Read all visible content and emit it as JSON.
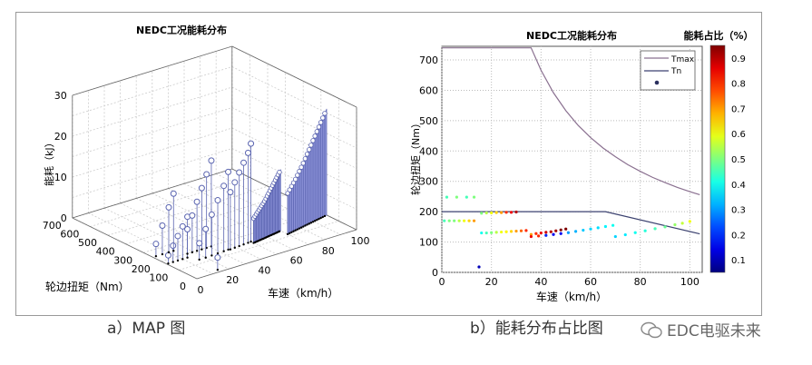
{
  "captions": {
    "a": "a）MAP 图",
    "b": "b）能耗分布占比图"
  },
  "watermark": "EDC电驱未来",
  "chart_data": [
    {
      "type": "scatter3d-stem",
      "title": "NEDC工况能耗分布",
      "xlabel": "车速（km/h）",
      "ylabel": "轮边扭矩（Nm）",
      "zlabel": "能耗（kJ）",
      "xlim": [
        0,
        100
      ],
      "ylim": [
        0,
        700
      ],
      "zlim": [
        0,
        30
      ],
      "xticks": [
        "0",
        "20",
        "40",
        "60",
        "80",
        "100"
      ],
      "yticks": [
        "0",
        "100",
        "200",
        "300",
        "400",
        "500",
        "600",
        "700"
      ],
      "zticks": [
        "0",
        "10",
        "20",
        "30"
      ],
      "stem_color": "#5a64b0",
      "fill_color": "#8c92d8",
      "grid": true,
      "points": [
        [
          1,
          170,
          2
        ],
        [
          4,
          170,
          4
        ],
        [
          7,
          170,
          6
        ],
        [
          10,
          170,
          8
        ],
        [
          13,
          170,
          10
        ],
        [
          2,
          248,
          3
        ],
        [
          6,
          248,
          7
        ],
        [
          10,
          248,
          11
        ],
        [
          13,
          248,
          14
        ],
        [
          16,
          197,
          6
        ],
        [
          19,
          197,
          9
        ],
        [
          22,
          197,
          12
        ],
        [
          25,
          197,
          15
        ],
        [
          28,
          197,
          18
        ],
        [
          31,
          197,
          21
        ],
        [
          16,
          130,
          4
        ],
        [
          20,
          130,
          7
        ],
        [
          24,
          132,
          10
        ],
        [
          28,
          134,
          13
        ],
        [
          32,
          136,
          16
        ],
        [
          35,
          138,
          19
        ],
        [
          36,
          135,
          14
        ],
        [
          39,
          137,
          16
        ],
        [
          42,
          139,
          18
        ],
        [
          45,
          141,
          20
        ],
        [
          48,
          143,
          22
        ],
        [
          50,
          145,
          24
        ],
        [
          15,
          18,
          3
        ]
      ],
      "filled": [
        {
          "x": [
            50,
            54,
            58,
            62,
            66,
            70
          ],
          "y": [
            130,
            135,
            140,
            146,
            151,
            157
          ],
          "z": [
            6,
            7.5,
            9,
            11,
            13,
            15
          ]
        },
        {
          "x": [
            70,
            76,
            82,
            88,
            94,
            100
          ],
          "y": [
            118,
            128,
            138,
            148,
            158,
            168
          ],
          "z": [
            10,
            12.5,
            15.5,
            19,
            22.5,
            26
          ]
        }
      ]
    },
    {
      "type": "scatter",
      "title": "NEDC工况能耗分布",
      "xlabel": "车速（km/h）",
      "ylabel": "轮边扭矩（Nm）",
      "xlim": [
        0,
        105
      ],
      "ylim": [
        0,
        745
      ],
      "xticks": [
        0,
        20,
        40,
        60,
        80,
        100
      ],
      "yticks": [
        0,
        100,
        200,
        300,
        400,
        500,
        600,
        700
      ],
      "grid": true,
      "legend": {
        "position": "top-right",
        "entries": [
          "Tmax",
          "Tn",
          ""
        ]
      },
      "colorbar": {
        "label": "能耗占比（%）",
        "range": [
          0.05,
          0.95
        ],
        "ticks": [
          "0.1",
          "0.2",
          "0.3",
          "0.4",
          "0.5",
          "0.6",
          "0.7",
          "0.8",
          "0.9"
        ],
        "colormap": "jet"
      },
      "lines": [
        {
          "name": "Tmax",
          "color": "#8a7090",
          "x": [
            0,
            36,
            40,
            45,
            50,
            55,
            60,
            65,
            70,
            75,
            80,
            85,
            90,
            95,
            100,
            104
          ],
          "y": [
            740,
            740,
            666,
            592,
            533,
            484,
            444,
            410,
            381,
            355,
            333,
            313,
            296,
            280,
            266,
            256
          ]
        },
        {
          "name": "Tn",
          "color": "#3c4270",
          "x": [
            0,
            66,
            104
          ],
          "y": [
            200,
            200,
            127
          ]
        }
      ],
      "points": [
        [
          2,
          248,
          0.45
        ],
        [
          6,
          248,
          0.5
        ],
        [
          10,
          248,
          0.45
        ],
        [
          13,
          248,
          0.5
        ],
        [
          1,
          170,
          0.45
        ],
        [
          3,
          170,
          0.5
        ],
        [
          5,
          170,
          0.5
        ],
        [
          7,
          170,
          0.55
        ],
        [
          9,
          170,
          0.6
        ],
        [
          11,
          170,
          0.65
        ],
        [
          13,
          170,
          0.7
        ],
        [
          16,
          195,
          0.5
        ],
        [
          18,
          196,
          0.55
        ],
        [
          20,
          196,
          0.6
        ],
        [
          22,
          197,
          0.65
        ],
        [
          24,
          197,
          0.7
        ],
        [
          26,
          198,
          0.8
        ],
        [
          28,
          198,
          0.85
        ],
        [
          30,
          199,
          0.9
        ],
        [
          16,
          130,
          0.4
        ],
        [
          18,
          130,
          0.45
        ],
        [
          20,
          131,
          0.5
        ],
        [
          22,
          132,
          0.55
        ],
        [
          24,
          133,
          0.6
        ],
        [
          26,
          134,
          0.62
        ],
        [
          28,
          135,
          0.65
        ],
        [
          30,
          136,
          0.7
        ],
        [
          32,
          137,
          0.75
        ],
        [
          34,
          138,
          0.8
        ],
        [
          36,
          125,
          0.7
        ],
        [
          38,
          128,
          0.8
        ],
        [
          40,
          130,
          0.85
        ],
        [
          42,
          132,
          0.88
        ],
        [
          44,
          134,
          0.9
        ],
        [
          46,
          137,
          0.92
        ],
        [
          48,
          140,
          0.95
        ],
        [
          50,
          143,
          0.95
        ],
        [
          36,
          118,
          0.85
        ],
        [
          39,
          120,
          0.8
        ],
        [
          42,
          122,
          0.2
        ],
        [
          45,
          125,
          0.15
        ],
        [
          48,
          128,
          0.15
        ],
        [
          51,
          131,
          0.3
        ],
        [
          54,
          135,
          0.32
        ],
        [
          57,
          139,
          0.34
        ],
        [
          60,
          143,
          0.35
        ],
        [
          63,
          147,
          0.36
        ],
        [
          66,
          151,
          0.38
        ],
        [
          69,
          155,
          0.4
        ],
        [
          70,
          118,
          0.35
        ],
        [
          74,
          124,
          0.37
        ],
        [
          78,
          131,
          0.4
        ],
        [
          82,
          137,
          0.42
        ],
        [
          86,
          144,
          0.45
        ],
        [
          90,
          150,
          0.48
        ],
        [
          94,
          157,
          0.52
        ],
        [
          97,
          162,
          0.56
        ],
        [
          100,
          168,
          0.6
        ],
        [
          15,
          18,
          0.1
        ]
      ]
    }
  ]
}
